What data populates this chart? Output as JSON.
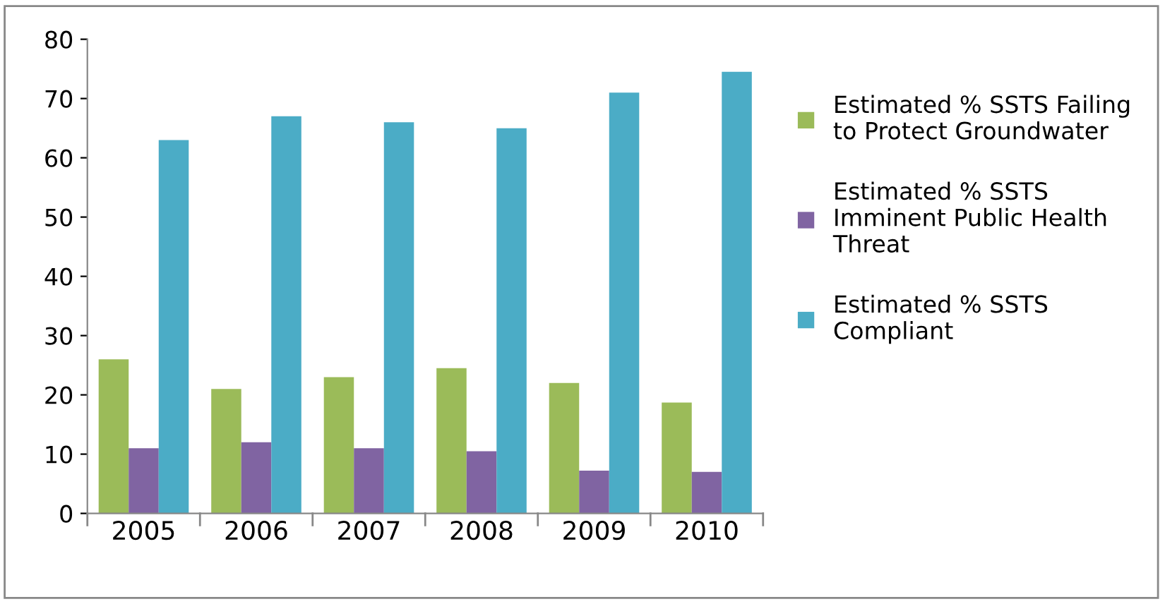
{
  "chart_data": {
    "type": "bar",
    "categories": [
      "2005",
      "2006",
      "2007",
      "2008",
      "2009",
      "2010"
    ],
    "series": [
      {
        "name": "Estimated % SSTS Failing\nto Protect Groundwater",
        "color": "#9bbb59",
        "values": [
          26,
          21,
          23,
          24.5,
          22,
          18.7
        ]
      },
      {
        "name": "Estimated % SSTS\nImminent Public Health\nThreat",
        "color": "#8064a2",
        "values": [
          11,
          12,
          11,
          10.5,
          7.2,
          7
        ]
      },
      {
        "name": "Estimated % SSTS\nCompliant",
        "color": "#4bacc6",
        "values": [
          63,
          67,
          66,
          65,
          71,
          74.5
        ]
      }
    ],
    "ylim": [
      0,
      80
    ],
    "yticks": [
      0,
      10,
      20,
      30,
      40,
      50,
      60,
      70,
      80
    ],
    "grid": false,
    "legend": "right"
  }
}
